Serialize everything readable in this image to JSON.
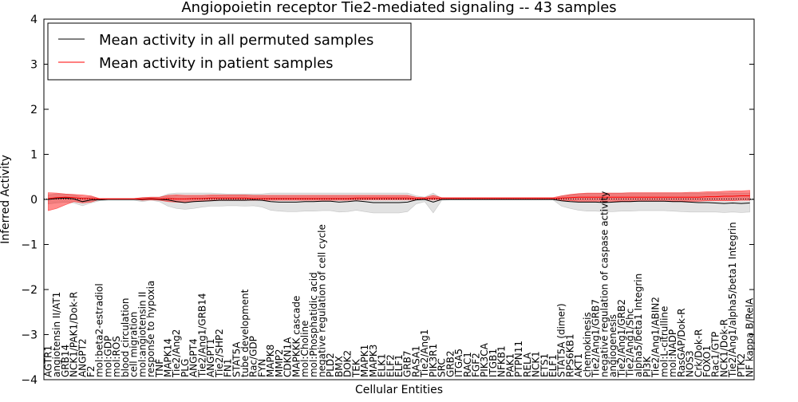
{
  "chart_data": {
    "type": "line",
    "title": "Angiopoietin receptor Tie2-mediated signaling -- 43 samples",
    "xlabel": "Cellular Entities",
    "ylabel": "Inferred Activity",
    "ylim": [
      -4,
      4
    ],
    "yticks": [
      "4",
      "3",
      "2",
      "1",
      "0",
      "−1",
      "−2",
      "−3",
      "−4"
    ],
    "grid": false,
    "legend_position": "top-left",
    "categories": [
      "AGTR1",
      "angiotensin II/AT1",
      "GRB14",
      "NCK1/PAK1/Dok-R",
      "ANGPT2",
      "F2",
      "mol:beta2-estradiol",
      "mol:GDP",
      "mol:ROS",
      "blood circulation",
      "cell migration",
      "mol:angiotensin II",
      "response to hypoxia",
      "TNF",
      "MAPK14",
      "Tie2/Ang2",
      "PLG",
      "ANGPT4",
      "Tie2/Ang1/GRB14",
      "ANGPT1",
      "Tie2/SHP2",
      "FN1",
      "STAT5A",
      "tube development",
      "Rac/GDP",
      "FYN",
      "MAPK8",
      "MMP2",
      "CDKN1A",
      "MAPKKK cascade",
      "mol:Choline",
      "mol:Phosphatidic acid",
      "negative regulation of cell cycle",
      "PLD2",
      "BMX",
      "DOK2",
      "TEK",
      "MAPK1",
      "MAPK3",
      "ELK1",
      "ELF2",
      "ELF1",
      "GRB7",
      "RASA1",
      "Tie2/Ang1",
      "PIK3R1",
      "SRC",
      "GRB2",
      "ITGA5",
      "RAC1",
      "FGF2",
      "PIK3CA",
      "ITGB1",
      "NFKB1",
      "PAK1",
      "PTPN11",
      "RELA",
      "NCK1",
      "ETS1",
      "ELF1",
      "STAT5A (dimer)",
      "RPS6KB1",
      "AKT1",
      "chemokinesis",
      "Tie2/Ang1/GRB7",
      "negative regulation of caspase activity",
      "angiogenesis",
      "Tie2/Ang1/GRB2",
      "Tie2/Ang1/Shc",
      "alpha5/beta1 Integrin",
      "PI3K",
      "Tie2/Ang1/ABIN2",
      "mol:L-citrulline",
      "mol:NADP",
      "RasGAP/Dok-R",
      "NOS3",
      "Crk/Dok-R",
      "FOXO1",
      "Rac1/GTP",
      "NCK1/Dok-R",
      "Tie2/Ang1/alpha5/beta1 Integrin",
      "PTK2",
      "NF kappa B/RelA"
    ],
    "series": [
      {
        "name": "Mean activity in all permuted samples",
        "color": "#000000",
        "values": [
          0.0,
          0.02,
          0.03,
          0.01,
          -0.05,
          -0.01,
          -0.01,
          0,
          0,
          0,
          0,
          0,
          0.01,
          0,
          -0.01,
          -0.05,
          -0.07,
          -0.05,
          -0.04,
          -0.03,
          -0.02,
          -0.02,
          -0.02,
          -0.02,
          -0.01,
          -0.02,
          -0.05,
          -0.06,
          -0.06,
          -0.06,
          -0.05,
          -0.05,
          -0.04,
          -0.04,
          -0.06,
          -0.05,
          -0.03,
          -0.05,
          -0.07,
          -0.07,
          -0.07,
          -0.07,
          -0.06,
          -0.01,
          0,
          -0.06,
          0,
          0,
          0,
          0,
          0,
          0,
          0,
          0,
          0,
          0,
          0,
          0,
          0,
          0,
          -0.03,
          -0.05,
          -0.06,
          -0.06,
          -0.06,
          -0.07,
          -0.06,
          -0.05,
          -0.05,
          -0.04,
          -0.04,
          -0.04,
          -0.04,
          -0.05,
          -0.05,
          -0.06,
          -0.07,
          -0.07,
          -0.08,
          -0.09,
          -0.08,
          -0.09,
          -0.08
        ],
        "band_low": [
          -0.1,
          -0.08,
          -0.06,
          -0.08,
          -0.14,
          -0.08,
          -0.03,
          -0.02,
          -0.02,
          -0.02,
          -0.02,
          -0.05,
          -0.02,
          -0.05,
          -0.15,
          -0.2,
          -0.22,
          -0.2,
          -0.17,
          -0.15,
          -0.15,
          -0.14,
          -0.14,
          -0.15,
          -0.14,
          -0.17,
          -0.24,
          -0.26,
          -0.27,
          -0.27,
          -0.26,
          -0.26,
          -0.25,
          -0.25,
          -0.28,
          -0.27,
          -0.24,
          -0.27,
          -0.3,
          -0.3,
          -0.3,
          -0.3,
          -0.27,
          -0.1,
          -0.05,
          -0.3,
          -0.02,
          -0.01,
          -0.01,
          -0.01,
          -0.01,
          -0.01,
          -0.01,
          -0.01,
          -0.01,
          -0.01,
          -0.01,
          -0.01,
          -0.01,
          -0.01,
          -0.15,
          -0.2,
          -0.24,
          -0.26,
          -0.26,
          -0.27,
          -0.27,
          -0.26,
          -0.26,
          -0.25,
          -0.25,
          -0.25,
          -0.25,
          -0.26,
          -0.27,
          -0.28,
          -0.28,
          -0.28,
          -0.28,
          -0.29,
          -0.28,
          -0.29,
          -0.28
        ],
        "band_high": [
          0.1,
          0.12,
          0.12,
          0.1,
          0.04,
          0.06,
          0.02,
          0.02,
          0.02,
          0.02,
          0.02,
          0.04,
          0.05,
          0.05,
          0.12,
          0.14,
          0.14,
          0.14,
          0.14,
          0.14,
          0.13,
          0.12,
          0.12,
          0.12,
          0.12,
          0.12,
          0.14,
          0.14,
          0.14,
          0.14,
          0.14,
          0.14,
          0.14,
          0.14,
          0.14,
          0.14,
          0.14,
          0.14,
          0.14,
          0.14,
          0.14,
          0.14,
          0.14,
          0.08,
          0.05,
          0.14,
          0.02,
          0.01,
          0.01,
          0.01,
          0.01,
          0.01,
          0.01,
          0.01,
          0.01,
          0.01,
          0.01,
          0.01,
          0.01,
          0.01,
          0.08,
          0.1,
          0.12,
          0.13,
          0.13,
          0.14,
          0.14,
          0.14,
          0.14,
          0.14,
          0.14,
          0.14,
          0.14,
          0.14,
          0.14,
          0.14,
          0.14,
          0.14,
          0.14,
          0.14,
          0.14,
          0.14,
          0.14
        ]
      },
      {
        "name": "Mean activity in patient samples",
        "color": "#ff0000",
        "values": [
          0.02,
          0.04,
          0.05,
          0.04,
          0.02,
          0.02,
          0.01,
          0.01,
          0.01,
          0.01,
          0.01,
          0.01,
          0.02,
          0.01,
          0.02,
          0.01,
          0.01,
          0.02,
          0.02,
          0.03,
          0.03,
          0.03,
          0.03,
          0.03,
          0.02,
          0.02,
          0.02,
          0.02,
          0.02,
          0.02,
          0.02,
          0.02,
          0.02,
          0.02,
          0.02,
          0.02,
          0.03,
          0.03,
          0.03,
          0.03,
          0.03,
          0.03,
          0.03,
          0.02,
          0.02,
          0.03,
          0.02,
          0.02,
          0.02,
          0.02,
          0.02,
          0.02,
          0.02,
          0.02,
          0.02,
          0.02,
          0.02,
          0.02,
          0.02,
          0.02,
          0.03,
          0.04,
          0.05,
          0.05,
          0.05,
          0.05,
          0.05,
          0.05,
          0.05,
          0.05,
          0.05,
          0.05,
          0.05,
          0.05,
          0.05,
          0.05,
          0.05,
          0.06,
          0.06,
          0.07,
          0.07,
          0.08,
          0.08
        ],
        "band_low": [
          -0.25,
          -0.2,
          -0.12,
          -0.05,
          -0.08,
          -0.06,
          0,
          0,
          0,
          0,
          0,
          -0.02,
          -0.01,
          -0.02,
          -0.05,
          -0.06,
          -0.07,
          -0.05,
          -0.04,
          -0.03,
          -0.02,
          -0.02,
          -0.02,
          -0.02,
          -0.02,
          -0.02,
          -0.02,
          -0.02,
          -0.02,
          -0.02,
          -0.02,
          -0.02,
          -0.02,
          -0.02,
          -0.02,
          -0.02,
          -0.01,
          -0.01,
          -0.01,
          -0.01,
          -0.01,
          -0.01,
          -0.01,
          -0.01,
          0,
          -0.01,
          0,
          0,
          0,
          0,
          0,
          0,
          0,
          0,
          0,
          0,
          0,
          0,
          0,
          0,
          -0.02,
          -0.03,
          -0.04,
          -0.04,
          -0.04,
          -0.04,
          -0.04,
          -0.04,
          -0.04,
          -0.04,
          -0.04,
          -0.04,
          -0.04,
          -0.04,
          -0.04,
          -0.04,
          -0.04,
          -0.03,
          -0.03,
          -0.03,
          -0.03,
          -0.02,
          -0.02
        ],
        "band_high": [
          0.15,
          0.14,
          0.12,
          0.11,
          0.1,
          0.08,
          0.02,
          0.02,
          0.02,
          0.02,
          0.02,
          0.04,
          0.05,
          0.05,
          0.09,
          0.1,
          0.09,
          0.09,
          0.09,
          0.1,
          0.1,
          0.1,
          0.1,
          0.1,
          0.09,
          0.09,
          0.09,
          0.09,
          0.09,
          0.09,
          0.09,
          0.09,
          0.09,
          0.09,
          0.09,
          0.09,
          0.09,
          0.09,
          0.09,
          0.09,
          0.09,
          0.09,
          0.09,
          0.05,
          0.04,
          0.09,
          0.04,
          0.04,
          0.04,
          0.04,
          0.04,
          0.04,
          0.04,
          0.04,
          0.04,
          0.04,
          0.04,
          0.04,
          0.04,
          0.04,
          0.08,
          0.11,
          0.13,
          0.14,
          0.14,
          0.14,
          0.14,
          0.14,
          0.15,
          0.15,
          0.15,
          0.15,
          0.15,
          0.15,
          0.15,
          0.16,
          0.16,
          0.17,
          0.17,
          0.18,
          0.19,
          0.19,
          0.2
        ]
      }
    ]
  }
}
